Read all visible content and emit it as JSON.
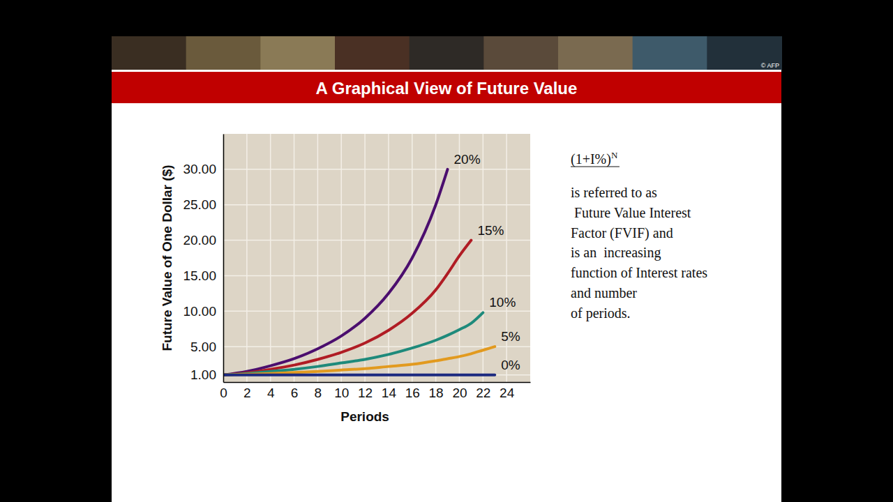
{
  "slide": {
    "title": "A Graphical View of Future Value",
    "banner_credit": "© AFP",
    "formula": {
      "base": "(1+I%)",
      "exponent": "N"
    },
    "description": [
      "is referred to as",
      " Future Value Interest",
      "Factor (FVIF) and",
      "is an  increasing",
      "function of Interest rates",
      "and number",
      "of periods."
    ]
  },
  "chart_data": {
    "type": "line",
    "x_label": "Periods",
    "y_label": "Future Value of One Dollar ($)",
    "x": [
      0,
      2,
      4,
      6,
      8,
      10,
      12,
      14,
      16,
      18,
      19,
      20,
      21,
      22,
      23
    ],
    "series": [
      {
        "name": "20%",
        "color": "#4b0e6e",
        "values": [
          1,
          1.5,
          2.3,
          3.3,
          4.7,
          6.5,
          9,
          12.5,
          17.5,
          25,
          30,
          null,
          null,
          null,
          null
        ]
      },
      {
        "name": "15%",
        "color": "#b01c24",
        "values": [
          1,
          1.3,
          1.8,
          2.4,
          3.2,
          4.2,
          5.5,
          7.3,
          9.7,
          13,
          15.3,
          17.8,
          20,
          null,
          null
        ]
      },
      {
        "name": "10%",
        "color": "#1e8a7b",
        "values": [
          1,
          1.2,
          1.5,
          1.8,
          2.2,
          2.7,
          3.2,
          3.9,
          4.8,
          5.9,
          6.6,
          7.4,
          8.3,
          9.8,
          null
        ]
      },
      {
        "name": "5%",
        "color": "#e29a1f",
        "values": [
          1,
          1.1,
          1.2,
          1.35,
          1.5,
          1.7,
          1.9,
          2.2,
          2.5,
          3,
          3.3,
          3.6,
          4,
          4.5,
          5
        ]
      },
      {
        "name": "0%",
        "color": "#1c2a80",
        "values": [
          1,
          1,
          1,
          1,
          1,
          1,
          1,
          1,
          1,
          1,
          1,
          1,
          1,
          1,
          1
        ]
      }
    ],
    "xlim": [
      0,
      26
    ],
    "xticks": [
      0,
      2,
      4,
      6,
      8,
      10,
      12,
      14,
      16,
      18,
      20,
      22,
      24
    ],
    "ylim": [
      0,
      35
    ],
    "yticks": [
      {
        "value": 1,
        "label": "1.00"
      },
      {
        "value": 5,
        "label": "5.00"
      },
      {
        "value": 10,
        "label": "10.00"
      },
      {
        "value": 15,
        "label": "15.00"
      },
      {
        "value": 20,
        "label": "20.00"
      },
      {
        "value": 25,
        "label": "25.00"
      },
      {
        "value": 30,
        "label": "30.00"
      }
    ],
    "grid": true
  }
}
